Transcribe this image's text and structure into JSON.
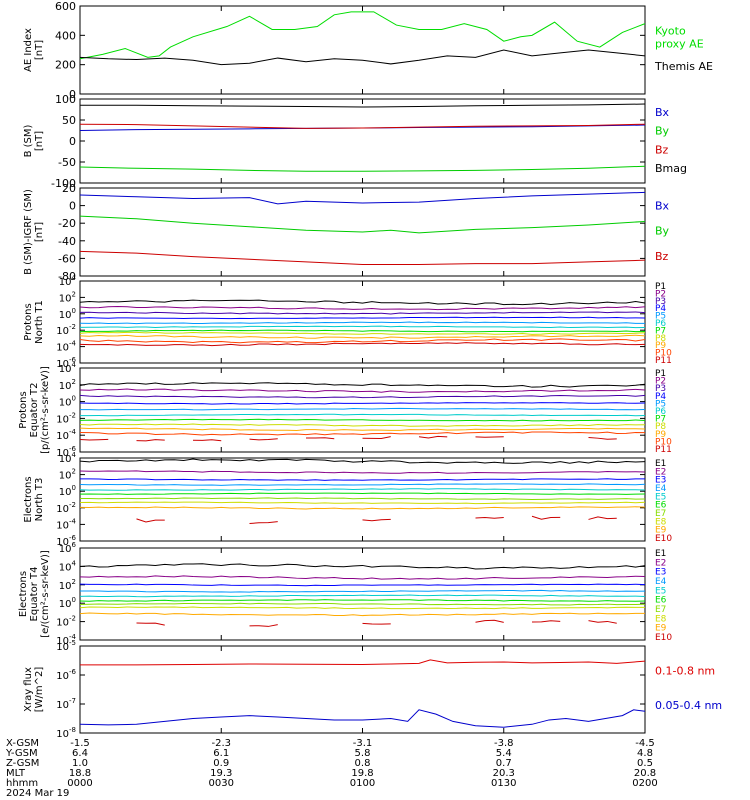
{
  "chart_data": [
    {
      "type": "line",
      "ylabel": [
        "AE Index",
        "[nT]"
      ],
      "ylim": [
        0,
        600
      ],
      "yticks": [
        "0",
        "200",
        "400",
        "600"
      ],
      "series": [
        {
          "name": "Kyoto proxy AE",
          "label_lines": [
            "Kyoto",
            "proxy AE"
          ],
          "color": "#00dd00",
          "x": [
            0,
            4,
            8,
            12,
            14,
            16,
            20,
            26,
            30,
            34,
            38,
            42,
            45,
            48,
            52,
            56,
            60,
            64,
            68,
            72,
            75,
            78,
            80,
            84,
            88,
            92,
            96,
            100
          ],
          "y": [
            240,
            270,
            310,
            250,
            260,
            320,
            390,
            460,
            530,
            440,
            440,
            460,
            540,
            560,
            560,
            470,
            440,
            440,
            480,
            440,
            360,
            390,
            400,
            490,
            360,
            320,
            420,
            480
          ]
        },
        {
          "name": "Themis AE",
          "label_lines": [
            "Themis AE"
          ],
          "color": "#000000",
          "x": [
            0,
            5,
            10,
            15,
            20,
            25,
            30,
            35,
            40,
            45,
            50,
            55,
            60,
            65,
            70,
            75,
            80,
            85,
            90,
            95,
            100
          ],
          "y": [
            250,
            240,
            235,
            245,
            230,
            200,
            210,
            245,
            220,
            240,
            230,
            205,
            230,
            260,
            250,
            300,
            260,
            280,
            300,
            280,
            260
          ]
        }
      ]
    },
    {
      "type": "line",
      "ylabel": [
        "B (SM)",
        "[nT]"
      ],
      "ylim": [
        -100,
        100
      ],
      "yticks": [
        "-100",
        "-50",
        "0",
        "50",
        "100"
      ],
      "series": [
        {
          "name": "Bx",
          "color": "#0000cc",
          "x": [
            0,
            10,
            20,
            30,
            40,
            50,
            60,
            70,
            80,
            90,
            100
          ],
          "y": [
            25,
            27,
            28,
            29,
            30,
            31,
            32,
            33,
            34,
            36,
            38
          ]
        },
        {
          "name": "By",
          "color": "#00cc00",
          "x": [
            0,
            10,
            20,
            30,
            40,
            50,
            60,
            70,
            80,
            90,
            100
          ],
          "y": [
            -62,
            -65,
            -67,
            -70,
            -72,
            -72,
            -71,
            -70,
            -68,
            -65,
            -60
          ]
        },
        {
          "name": "Bz",
          "color": "#cc0000",
          "x": [
            0,
            10,
            20,
            30,
            40,
            50,
            60,
            70,
            80,
            90,
            100
          ],
          "y": [
            40,
            39,
            36,
            33,
            30,
            31,
            33,
            35,
            36,
            37,
            40
          ]
        },
        {
          "name": "Bmag",
          "color": "#000000",
          "x": [
            0,
            10,
            20,
            30,
            40,
            50,
            60,
            70,
            80,
            90,
            100
          ],
          "y": [
            85,
            85,
            84,
            83,
            82,
            81,
            82,
            84,
            85,
            86,
            88
          ]
        }
      ]
    },
    {
      "type": "line",
      "ylabel": [
        "B (SM)-IGRF (SM)",
        "[nT]"
      ],
      "ylim": [
        -80,
        20
      ],
      "yticks": [
        "-80",
        "-60",
        "-40",
        "-20",
        "0",
        "20"
      ],
      "series": [
        {
          "name": "Bx",
          "color": "#0000cc",
          "x": [
            0,
            10,
            20,
            30,
            35,
            40,
            50,
            60,
            70,
            80,
            90,
            100
          ],
          "y": [
            12,
            10,
            8,
            9,
            2,
            5,
            3,
            4,
            8,
            11,
            13,
            15
          ]
        },
        {
          "name": "By",
          "color": "#00cc00",
          "x": [
            0,
            10,
            20,
            30,
            40,
            50,
            55,
            60,
            70,
            80,
            90,
            100
          ],
          "y": [
            -12,
            -15,
            -20,
            -24,
            -28,
            -30,
            -28,
            -31,
            -27,
            -25,
            -22,
            -18
          ]
        },
        {
          "name": "Bz",
          "color": "#cc0000",
          "x": [
            0,
            10,
            20,
            30,
            40,
            50,
            60,
            70,
            80,
            90,
            100
          ],
          "y": [
            -52,
            -54,
            -58,
            -61,
            -64,
            -67,
            -67,
            -66,
            -66,
            -64,
            -62
          ]
        }
      ]
    },
    {
      "type": "line",
      "log": true,
      "ylabel": [
        "Protons",
        "North T1"
      ],
      "ylim": [
        -6,
        4
      ],
      "yticks": [
        "10^-6",
        "10^-4",
        "10^-2",
        "10^0",
        "10^2",
        "10^4"
      ],
      "series": [
        {
          "name": "P1",
          "color": "#000000",
          "base": 1.4,
          "amp": 0.3
        },
        {
          "name": "P2",
          "color": "#880088",
          "base": 0.7,
          "amp": 0.2
        },
        {
          "name": "P3",
          "color": "#4400aa",
          "base": 0.1,
          "amp": 0.15
        },
        {
          "name": "P4",
          "color": "#0000ff",
          "base": -0.5,
          "amp": 0.1
        },
        {
          "name": "P5",
          "color": "#0099ff",
          "base": -1.1,
          "amp": 0.1
        },
        {
          "name": "P6",
          "color": "#00cccc",
          "base": -1.6,
          "amp": 0.1
        },
        {
          "name": "P7",
          "color": "#00dd00",
          "base": -2.1,
          "amp": 0.12
        },
        {
          "name": "P8",
          "color": "#ccdd00",
          "base": -2.4,
          "amp": 0.15
        },
        {
          "name": "P9",
          "color": "#ffaa00",
          "base": -2.8,
          "amp": 0.2
        },
        {
          "name": "P10",
          "color": "#ff4400",
          "base": -3.3,
          "amp": 0.25
        },
        {
          "name": "P11",
          "color": "#cc0000",
          "base": -3.7,
          "amp": 0.2
        }
      ]
    },
    {
      "type": "line",
      "log": true,
      "ylabel": [
        "Protons",
        "Equator T2",
        "[p/(cm²-s-sr-keV)]"
      ],
      "ylim": [
        -6,
        4
      ],
      "yticks": [
        "10^-6",
        "10^-4",
        "10^-2",
        "10^0",
        "10^2",
        "10^4"
      ],
      "series": [
        {
          "name": "P1",
          "color": "#000000",
          "base": 2.0,
          "amp": 0.3
        },
        {
          "name": "P2",
          "color": "#880088",
          "base": 1.3,
          "amp": 0.2
        },
        {
          "name": "P3",
          "color": "#4400aa",
          "base": 0.6,
          "amp": 0.15
        },
        {
          "name": "P4",
          "color": "#0000ff",
          "base": -0.2,
          "amp": 0.1
        },
        {
          "name": "P5",
          "color": "#0099ff",
          "base": -0.9,
          "amp": 0.1
        },
        {
          "name": "P6",
          "color": "#00cccc",
          "base": -1.6,
          "amp": 0.1
        },
        {
          "name": "P7",
          "color": "#00dd00",
          "base": -2.2,
          "amp": 0.1
        },
        {
          "name": "P8",
          "color": "#ccdd00",
          "base": -2.8,
          "amp": 0.15
        },
        {
          "name": "P9",
          "color": "#ffaa00",
          "base": -3.3,
          "amp": 0.15
        },
        {
          "name": "P10",
          "color": "#ff4400",
          "base": -3.8,
          "amp": 0.2
        },
        {
          "name": "P11",
          "color": "#cc0000",
          "base": -4.4,
          "amp": 0.3,
          "broken": true
        }
      ]
    },
    {
      "type": "line",
      "log": true,
      "ylabel": [
        "Electrons",
        "North T3"
      ],
      "ylim": [
        -6,
        4
      ],
      "yticks": [
        "10^-6",
        "10^-4",
        "10^-2",
        "10^0",
        "10^2",
        "10^4"
      ],
      "series": [
        {
          "name": "E1",
          "color": "#000000",
          "base": 3.6,
          "amp": 0.3
        },
        {
          "name": "E2",
          "color": "#880088",
          "base": 2.3,
          "amp": 0.15
        },
        {
          "name": "E3",
          "color": "#0000ff",
          "base": 1.4,
          "amp": 0.1
        },
        {
          "name": "E4",
          "color": "#0099ff",
          "base": 0.8,
          "amp": 0.1
        },
        {
          "name": "E5",
          "color": "#00cccc",
          "base": 0.2,
          "amp": 0.1
        },
        {
          "name": "E6",
          "color": "#00dd00",
          "base": -0.3,
          "amp": 0.1
        },
        {
          "name": "E7",
          "color": "#88dd00",
          "base": -0.9,
          "amp": 0.1
        },
        {
          "name": "E8",
          "color": "#ccdd00",
          "base": -1.4,
          "amp": 0.1
        },
        {
          "name": "E9",
          "color": "#ffaa00",
          "base": -2.0,
          "amp": 0.15
        },
        {
          "name": "E10",
          "color": "#cc0000",
          "base": -3.5,
          "amp": 0.6,
          "broken": true
        }
      ]
    },
    {
      "type": "line",
      "log": true,
      "ylabel": [
        "Electrons",
        "Equator T4",
        "[e/(cm²-s-sr-keV)]"
      ],
      "ylim": [
        -4,
        6
      ],
      "yticks": [
        "10^-4",
        "10^-2",
        "10^0",
        "10^2",
        "10^4",
        "10^6"
      ],
      "series": [
        {
          "name": "E1",
          "color": "#000000",
          "base": 4.0,
          "amp": 0.3
        },
        {
          "name": "E2",
          "color": "#880088",
          "base": 2.8,
          "amp": 0.2
        },
        {
          "name": "E3",
          "color": "#0000ff",
          "base": 2.0,
          "amp": 0.1
        },
        {
          "name": "E4",
          "color": "#0099ff",
          "base": 1.3,
          "amp": 0.1
        },
        {
          "name": "E5",
          "color": "#00cccc",
          "base": 0.8,
          "amp": 0.1
        },
        {
          "name": "E6",
          "color": "#00dd00",
          "base": 0.3,
          "amp": 0.1
        },
        {
          "name": "E7",
          "color": "#88dd00",
          "base": -0.1,
          "amp": 0.1
        },
        {
          "name": "E8",
          "color": "#ccdd00",
          "base": -0.5,
          "amp": 0.1
        },
        {
          "name": "E9",
          "color": "#ffaa00",
          "base": -1.2,
          "amp": 0.15
        },
        {
          "name": "E10",
          "color": "#cc0000",
          "base": -2.2,
          "amp": 0.4,
          "broken": true
        }
      ]
    },
    {
      "type": "line",
      "log": true,
      "ylabel": [
        "Xray flux",
        "[W/m^2]"
      ],
      "ylim": [
        -8,
        -5
      ],
      "yticks": [
        "10^-8",
        "10^-7",
        "10^-6",
        "10^-5"
      ],
      "series": [
        {
          "name": "0.1-0.8 nm",
          "color": "#dd0000",
          "x": [
            0,
            10,
            20,
            30,
            40,
            50,
            55,
            60,
            62,
            65,
            70,
            75,
            80,
            85,
            90,
            95,
            100
          ],
          "y": [
            -5.65,
            -5.65,
            -5.64,
            -5.62,
            -5.63,
            -5.64,
            -5.62,
            -5.6,
            -5.48,
            -5.58,
            -5.56,
            -5.55,
            -5.58,
            -5.57,
            -5.55,
            -5.6,
            -5.52
          ]
        },
        {
          "name": "0.05-0.4 nm",
          "color": "#0000cc",
          "x": [
            0,
            5,
            10,
            15,
            20,
            25,
            30,
            35,
            40,
            45,
            50,
            55,
            58,
            60,
            63,
            66,
            70,
            75,
            80,
            83,
            86,
            90,
            93,
            96,
            98,
            100
          ],
          "y": [
            -7.7,
            -7.72,
            -7.7,
            -7.6,
            -7.5,
            -7.45,
            -7.4,
            -7.45,
            -7.5,
            -7.55,
            -7.55,
            -7.5,
            -7.6,
            -7.2,
            -7.35,
            -7.6,
            -7.75,
            -7.8,
            -7.7,
            -7.55,
            -7.5,
            -7.6,
            -7.5,
            -7.4,
            -7.2,
            -7.25
          ]
        }
      ]
    }
  ],
  "x_axis": {
    "ticks": [
      0,
      25,
      50,
      75,
      100
    ],
    "rows": [
      {
        "label": "X-GSM",
        "values": [
          "-1.5",
          "-2.3",
          "-3.1",
          "-3.8",
          "-4.5"
        ]
      },
      {
        "label": "Y-GSM",
        "values": [
          "6.4",
          "6.1",
          "5.8",
          "5.4",
          "4.8"
        ]
      },
      {
        "label": "Z-GSM",
        "values": [
          "1.0",
          "0.9",
          "0.8",
          "0.7",
          "0.5"
        ]
      },
      {
        "label": "MLT",
        "values": [
          "18.8",
          "19.3",
          "19.8",
          "20.3",
          "20.8"
        ]
      },
      {
        "label": "hhmm",
        "values": [
          "0000",
          "0030",
          "0100",
          "0130",
          "0200"
        ]
      }
    ],
    "date": "2024 Mar 19"
  }
}
